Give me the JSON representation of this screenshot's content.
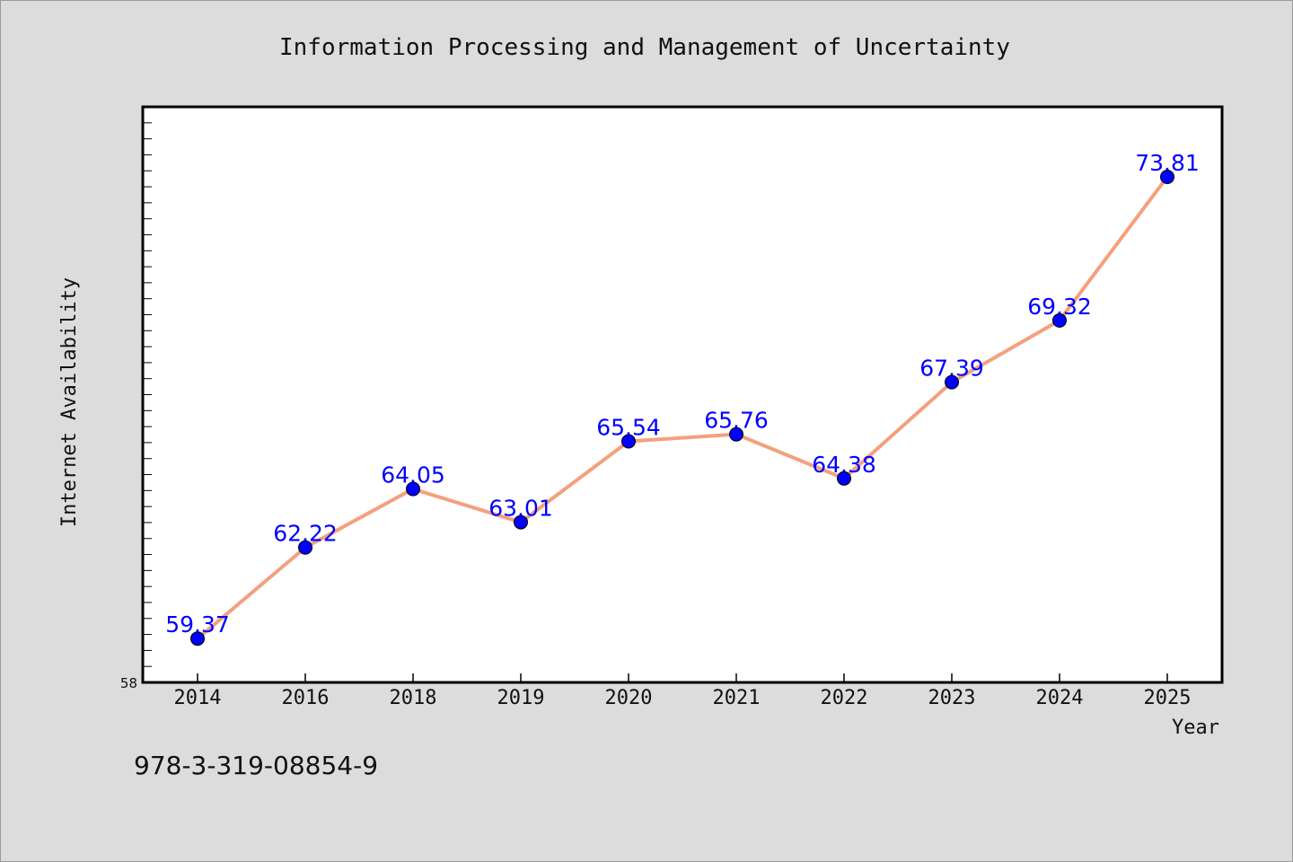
{
  "chart_data": {
    "type": "line",
    "title": "Information Processing and Management of Uncertainty",
    "xlabel": "Year",
    "ylabel": "Internet Availability",
    "categories": [
      "2014",
      "2016",
      "2018",
      "2019",
      "2020",
      "2021",
      "2022",
      "2023",
      "2024",
      "2025"
    ],
    "series": [
      {
        "values": [
          59.37,
          62.22,
          64.05,
          63.01,
          65.54,
          65.76,
          64.38,
          67.39,
          69.32,
          73.81
        ]
      }
    ],
    "data_labels": [
      "59.37",
      "62.22",
      "64.05",
      "63.01",
      "65.54",
      "65.76",
      "64.38",
      "67.39",
      "69.32",
      "73.81"
    ],
    "ylim": [
      58,
      76
    ],
    "y_tick_labels": [
      {
        "value": 58,
        "label": "58"
      }
    ],
    "y_minor_ticks": [
      58.5,
      59,
      59.5,
      60,
      60.5,
      61,
      61.5,
      62,
      62.5,
      63,
      63.5,
      64,
      64.5,
      65,
      65.5,
      66,
      66.5,
      67,
      67.5,
      68,
      68.5,
      69,
      69.5,
      70,
      70.5,
      71,
      71.5,
      72,
      72.5,
      73,
      73.5,
      74,
      74.5,
      75,
      75.5
    ],
    "grid": false,
    "legend": "none",
    "colors": {
      "line": "#f4a07e",
      "marker": "#0000ff",
      "label": "#0000ff",
      "background": "#dcdcdc",
      "plot_background": "#ffffff"
    }
  },
  "footer": {
    "isbn": "978-3-319-08854-9"
  }
}
